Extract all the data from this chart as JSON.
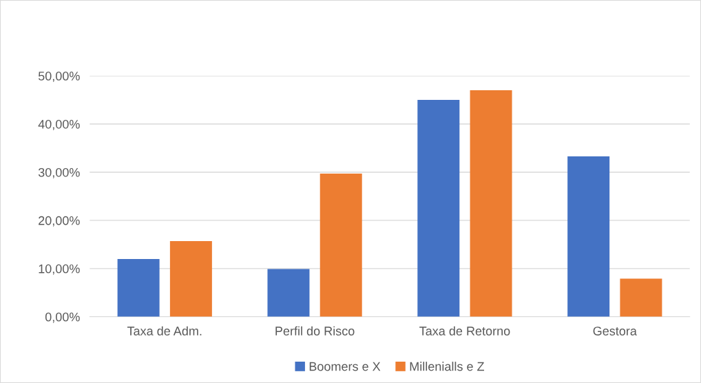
{
  "chart_data": {
    "type": "bar",
    "categories": [
      "Taxa de Adm.",
      "Perfil do Risco",
      "Taxa de Retorno",
      "Gestora"
    ],
    "series": [
      {
        "name": "Boomers e X",
        "color": "#4472c4",
        "values": [
          12.0,
          9.9,
          45.0,
          33.3
        ]
      },
      {
        "name": "Millenialls e Z",
        "color": "#ed7d31",
        "values": [
          15.7,
          29.7,
          47.0,
          7.9
        ]
      }
    ],
    "ylim": [
      0,
      50
    ],
    "yticks": [
      {
        "value": 0,
        "label": "0,00%"
      },
      {
        "value": 10,
        "label": "10,00%"
      },
      {
        "value": 20,
        "label": "20,00%"
      },
      {
        "value": 30,
        "label": "30,00%"
      },
      {
        "value": 40,
        "label": "40,00%"
      },
      {
        "value": 50,
        "label": "50,00%"
      }
    ],
    "grid": "y",
    "legend": "bottom"
  }
}
